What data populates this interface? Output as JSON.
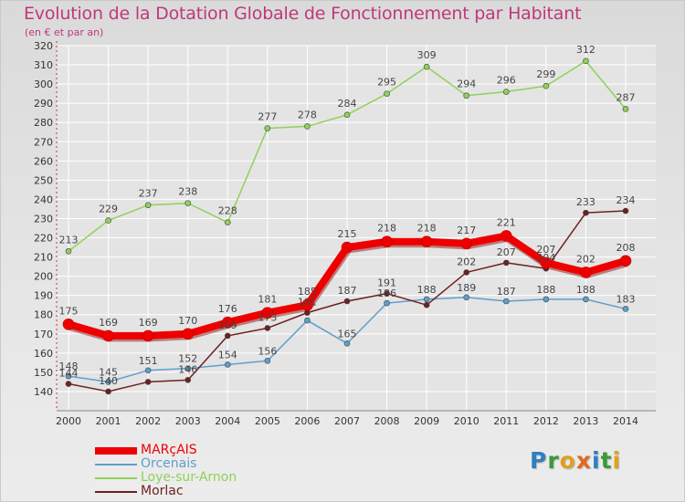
{
  "title": "Evolution de la Dotation Globale de Fonctionnement par Habitant",
  "subtitle": "(en € et par an)",
  "logo": {
    "letters": [
      {
        "ch": "P",
        "color": "#2f7fc1"
      },
      {
        "ch": "r",
        "color": "#3a9a3a"
      },
      {
        "ch": "o",
        "color": "#e0a020"
      },
      {
        "ch": "x",
        "color": "#e06a1a"
      },
      {
        "ch": "i",
        "color": "#2f7fc1"
      },
      {
        "ch": "t",
        "color": "#3a9a3a"
      },
      {
        "ch": "i",
        "color": "#e0a020"
      }
    ]
  },
  "chart_data": {
    "type": "line",
    "title": "Evolution de la Dotation Globale de Fonctionnement par Habitant",
    "ylabel": "(en € et par an)",
    "xlabel": "",
    "ylim": [
      130,
      320
    ],
    "yticks": [
      140,
      150,
      160,
      170,
      180,
      190,
      200,
      210,
      220,
      230,
      240,
      250,
      260,
      270,
      280,
      290,
      300,
      310,
      320
    ],
    "categories": [
      "2000",
      "2001",
      "2002",
      "2003",
      "2004",
      "2005",
      "2006",
      "2007",
      "2008",
      "2009",
      "2010",
      "2011",
      "2012",
      "2013",
      "2014"
    ],
    "grid": true,
    "series": [
      {
        "name": "MARçAIS",
        "color": "#ee0000",
        "values": [
          175,
          169,
          169,
          170,
          176,
          181,
          185,
          215,
          218,
          218,
          217,
          221,
          207,
          202,
          208
        ],
        "labels": [
          "175",
          "169",
          "169",
          "170",
          "176",
          "181",
          "185",
          "215",
          "218",
          "218",
          "217",
          "221",
          "207",
          "202",
          "208"
        ]
      },
      {
        "name": "Orcenais",
        "color": "#5e9fcc",
        "values": [
          148,
          145,
          151,
          152,
          154,
          156,
          177,
          165,
          186,
          188,
          189,
          187,
          188,
          188,
          183
        ],
        "labels": [
          "148",
          "145",
          "151",
          "152",
          "154",
          "156",
          "",
          "165",
          "186",
          "188",
          "189",
          "187",
          "188",
          "188",
          "183"
        ]
      },
      {
        "name": "Loye-sur-Arnon",
        "color": "#8fd15a",
        "values": [
          213,
          229,
          237,
          238,
          228,
          277,
          278,
          284,
          295,
          309,
          294,
          296,
          299,
          312,
          287
        ],
        "labels": [
          "213",
          "229",
          "237",
          "238",
          "228",
          "277",
          "278",
          "284",
          "295",
          "309",
          "294",
          "296",
          "299",
          "312",
          "287"
        ]
      },
      {
        "name": "Morlac",
        "color": "#6e2020",
        "values": [
          144,
          140,
          145,
          146,
          169,
          173,
          181,
          187,
          191,
          185,
          202,
          207,
          204,
          233,
          234
        ],
        "labels": [
          "144",
          "140",
          "",
          "146",
          "169",
          "173",
          "181",
          "187",
          "191",
          "",
          "202",
          "207",
          "204",
          "233",
          "234"
        ]
      }
    ]
  }
}
